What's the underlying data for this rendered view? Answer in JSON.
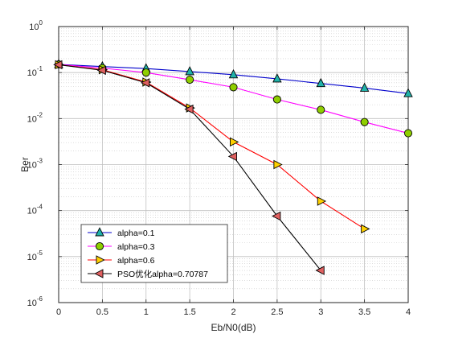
{
  "chart_data": {
    "type": "line",
    "xlabel": "Eb/N0(dB)",
    "ylabel": "Ber",
    "xlim": [
      0,
      4
    ],
    "ylim": [
      1e-06,
      1
    ],
    "yscale": "log",
    "grid": true,
    "minor_grid": true,
    "legend_position": "bottom-left",
    "x_ticks": [
      "0",
      "0.5",
      "1",
      "1.5",
      "2",
      "2.5",
      "3",
      "3.5",
      "4"
    ],
    "y_ticks": [
      {
        "base": "10",
        "exp": "-6"
      },
      {
        "base": "10",
        "exp": "-5"
      },
      {
        "base": "10",
        "exp": "-4"
      },
      {
        "base": "10",
        "exp": "-3"
      },
      {
        "base": "10",
        "exp": "-2"
      },
      {
        "base": "10",
        "exp": "-1"
      },
      {
        "base": "10",
        "exp": "0"
      }
    ],
    "series": [
      {
        "name": "alpha=0.1",
        "color": "#0000cc",
        "marker": "triangle-up",
        "marker_fill": "#20b2aa",
        "x": [
          0,
          0.5,
          1,
          1.5,
          2,
          2.5,
          3,
          3.5,
          4
        ],
        "y": [
          0.15,
          0.135,
          0.122,
          0.105,
          0.09,
          0.073,
          0.058,
          0.046,
          0.035
        ]
      },
      {
        "name": "alpha=0.3",
        "color": "#ff00ff",
        "marker": "circle",
        "marker_fill": "#8fce00",
        "x": [
          0,
          0.5,
          1,
          1.5,
          2,
          2.5,
          3,
          3.5,
          4
        ],
        "y": [
          0.15,
          0.125,
          0.1,
          0.07,
          0.048,
          0.026,
          0.0155,
          0.0084,
          0.0048
        ]
      },
      {
        "name": "alpha=0.6",
        "color": "#ff0000",
        "marker": "triangle-right",
        "marker_fill": "#ffd000",
        "x": [
          0,
          0.5,
          1,
          1.5,
          2,
          2.5,
          3,
          3.5
        ],
        "y": [
          0.148,
          0.115,
          0.062,
          0.017,
          0.0031,
          0.001,
          0.00016,
          4e-05
        ]
      },
      {
        "name": "PSO优化alpha=0.70787",
        "color": "#000000",
        "marker": "triangle-left",
        "marker_fill": "#e06060",
        "x": [
          0,
          0.5,
          1,
          1.5,
          2,
          2.5,
          3
        ],
        "y": [
          0.148,
          0.112,
          0.06,
          0.016,
          0.0015,
          7.6e-05,
          5e-06
        ]
      }
    ]
  }
}
